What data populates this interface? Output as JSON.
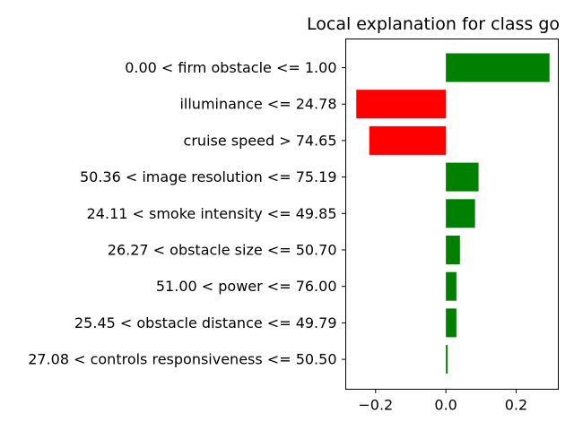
{
  "chart_data": {
    "type": "bar",
    "orientation": "horizontal",
    "title": "Local explanation for class go",
    "xlabel": "",
    "ylabel": "",
    "xlim": [
      -0.285,
      0.32
    ],
    "xticks": [
      -0.2,
      0.0,
      0.2
    ],
    "xtick_labels": [
      "−0.2",
      "0.0",
      "0.2"
    ],
    "grid": false,
    "categories": [
      "0.00 < firm obstacle <= 1.00",
      "illuminance <= 24.78",
      "cruise speed > 74.65",
      "50.36 < image resolution <= 75.19",
      "24.11 < smoke intensity <= 49.85",
      "26.27 < obstacle size <= 50.70",
      "51.00 < power <= 76.00",
      "25.45 < obstacle distance <= 49.79",
      "27.08 < controls responsiveness <= 50.50"
    ],
    "values": [
      0.295,
      -0.255,
      -0.218,
      0.093,
      0.083,
      0.04,
      0.03,
      0.03,
      0.005
    ],
    "colors": {
      "positive": "#008000",
      "negative": "#ff0000"
    }
  }
}
